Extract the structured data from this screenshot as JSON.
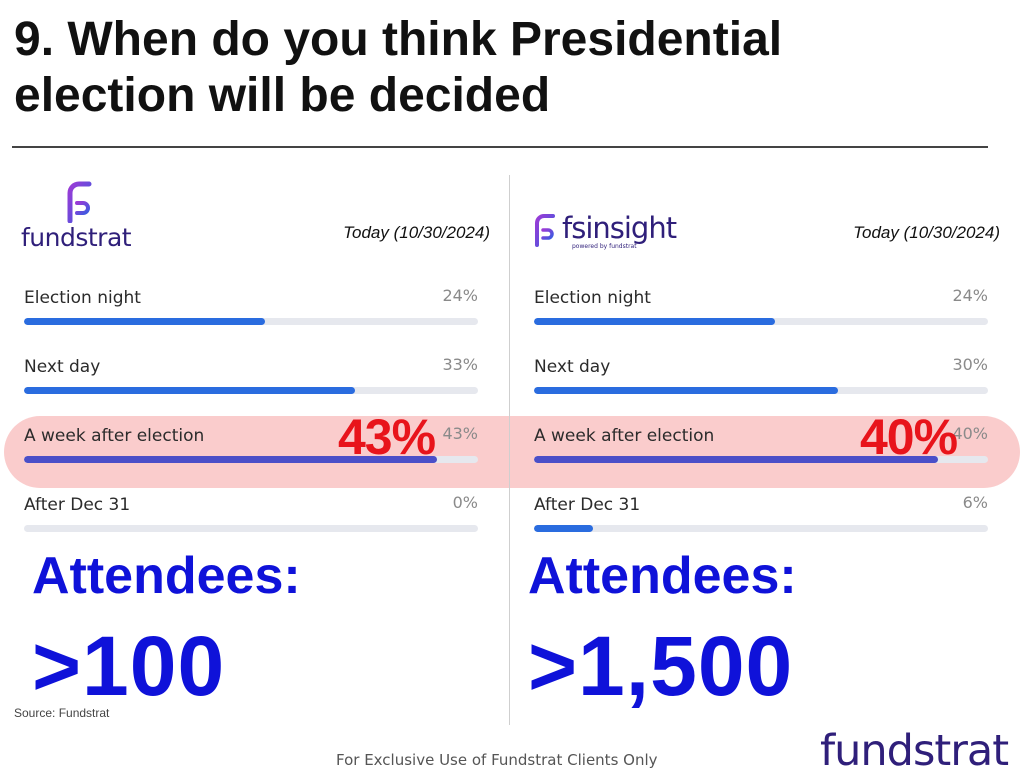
{
  "title": "9. When do you think Presidential election will be decided",
  "chart_data": [
    {
      "type": "bar",
      "orientation": "horizontal",
      "source_brand": "fundstrat",
      "date_label": "Today (10/30/2024)",
      "categories": [
        "Election night",
        "Next day",
        "A week after election",
        "After Dec 31"
      ],
      "values": [
        24,
        33,
        43,
        0
      ],
      "value_labels": [
        "24%",
        "33%",
        "43%",
        "0%"
      ],
      "bar_fractions": [
        0.53,
        0.73,
        0.91,
        0.0
      ],
      "highlight_label": "43%",
      "attendees_label": "Attendees:",
      "attendees_value": ">100"
    },
    {
      "type": "bar",
      "orientation": "horizontal",
      "source_brand": "fsinsight",
      "source_sub": "powered by fundstrat",
      "date_label": "Today (10/30/2024)",
      "categories": [
        "Election night",
        "Next day",
        "A week after election",
        "After Dec 31"
      ],
      "values": [
        24,
        30,
        40,
        6
      ],
      "value_labels": [
        "24%",
        "30%",
        "40%",
        "6%"
      ],
      "bar_fractions": [
        0.53,
        0.67,
        0.89,
        0.13
      ],
      "highlight_label": "40%",
      "attendees_label": "Attendees:",
      "attendees_value": ">1,500"
    }
  ],
  "colors": {
    "bar": "#2a6cdf",
    "bar_highlight": "#4b4fc8",
    "highlight_band": "#f27878",
    "highlight_text": "#e8141b",
    "attendees_text": "#0f12d9",
    "brand": "#2f1f7a"
  },
  "source": "Source: Fundstrat",
  "footer": "For Exclusive Use of Fundstrat Clients Only",
  "footer_logo": "fundstrat"
}
